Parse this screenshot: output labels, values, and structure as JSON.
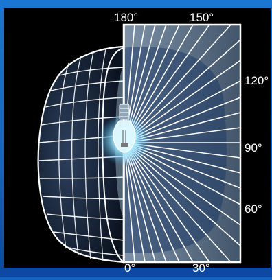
{
  "angle_labels": {
    "deg_180": "180°",
    "deg_150": "150°",
    "deg_120": "120°",
    "deg_90": "90°",
    "deg_60": "60°",
    "deg_0": "0°",
    "deg_30": "30°"
  },
  "colors": {
    "frame_blue": "#1565c0",
    "panel_black": "#000000",
    "grid_white": "#ffffff",
    "plane_fill": "#8fb3d9",
    "bulb_glow": "#bfefff"
  },
  "icons": {
    "bulb": "light-bulb-icon"
  }
}
